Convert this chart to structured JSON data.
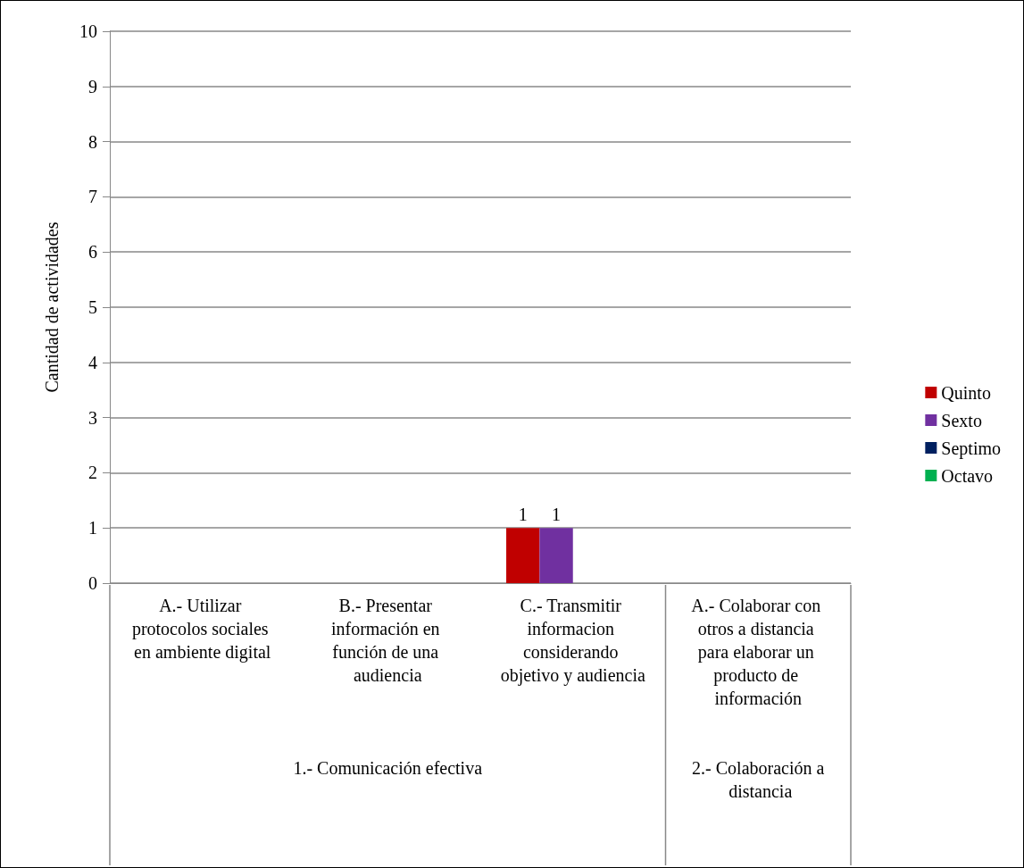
{
  "chart_data": {
    "type": "bar",
    "ylabel": "Cantidad de actividades",
    "categories": [
      "A.- Utilizar protocolos sociales en ambiente digital",
      "B.- Presentar información en función de una audiencia",
      "C.- Transmitir informacion considerando objetivo y audiencia",
      "A.- Colaborar con otros a distancia para elaborar un producto de información"
    ],
    "series": [
      {
        "name": "Quinto",
        "color": "#c00000",
        "values": [
          0,
          0,
          1,
          0
        ],
        "value_labels": [
          null,
          null,
          "1",
          null
        ]
      },
      {
        "name": "Sexto",
        "color": "#7030a0",
        "values": [
          0,
          0,
          1,
          0
        ],
        "value_labels": [
          null,
          null,
          "1",
          null
        ]
      },
      {
        "name": "Septimo",
        "color": "#002060",
        "values": [
          0,
          0,
          0,
          0
        ]
      },
      {
        "name": "Octavo",
        "color": "#00b050",
        "values": [
          0,
          0,
          0,
          0
        ]
      }
    ],
    "annotations": [
      "1.- Comunicación efectiva",
      "2.- Colaboración a distancia"
    ],
    "ylim": [
      0,
      10
    ],
    "yticks": [
      0,
      1,
      2,
      3,
      4,
      5,
      6,
      7,
      8,
      9,
      10
    ],
    "grid": "y",
    "legend": "right"
  }
}
